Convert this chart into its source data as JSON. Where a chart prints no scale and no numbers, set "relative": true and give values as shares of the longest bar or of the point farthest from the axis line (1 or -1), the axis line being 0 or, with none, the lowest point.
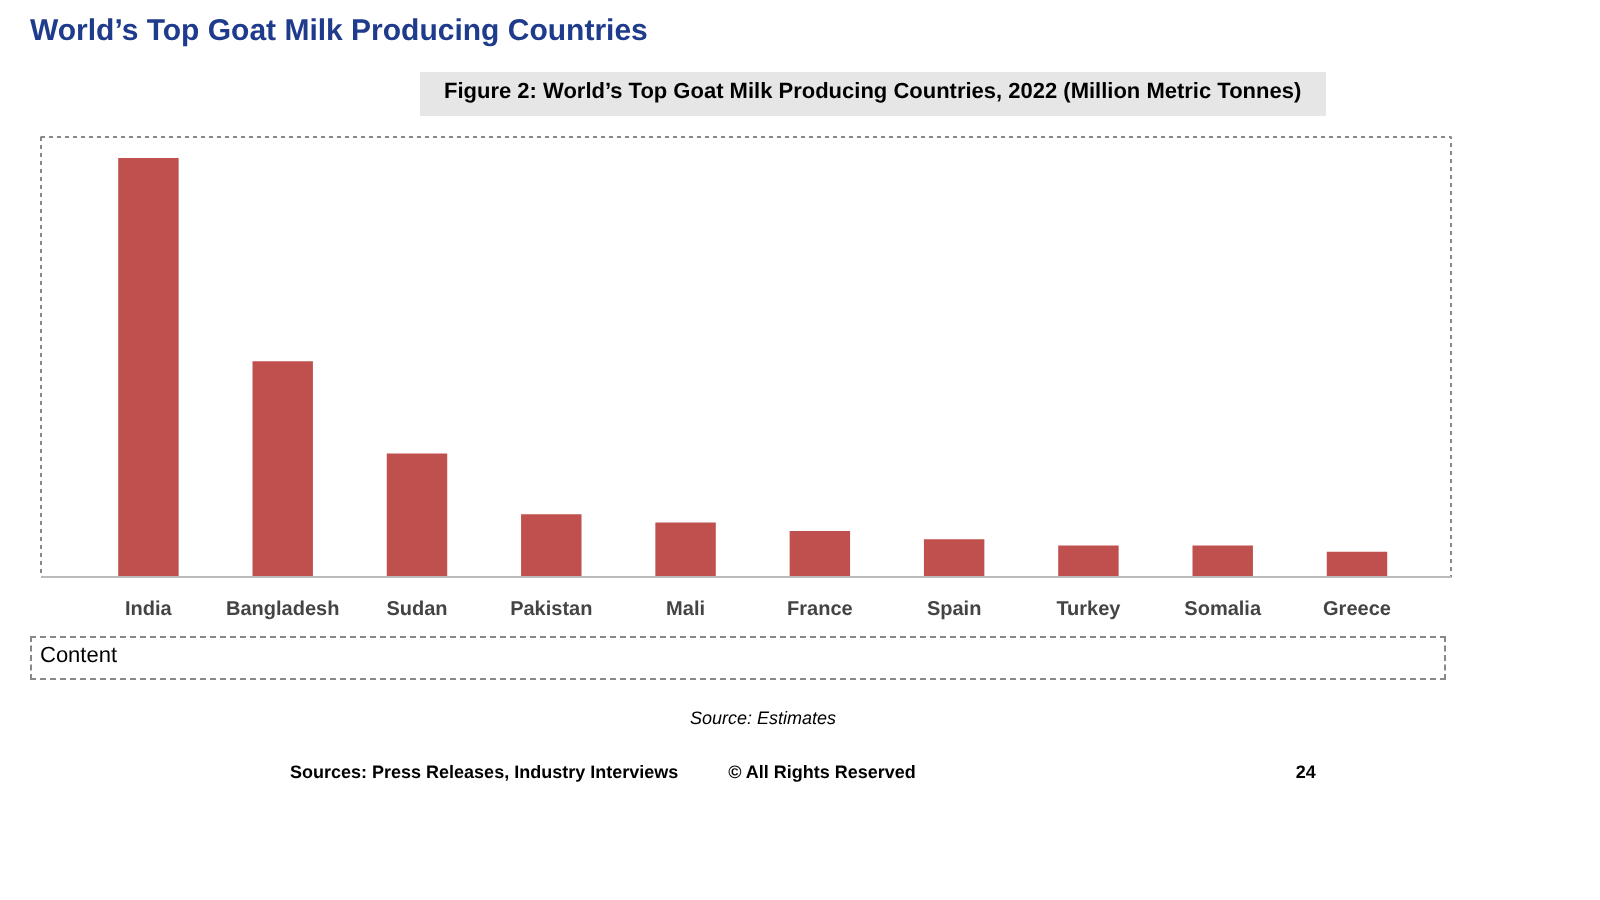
{
  "chart_data": {
    "type": "bar",
    "title": "World’s Top Goat Milk Producing Countries",
    "subtitle": "Figure 2: World’s Top Goat Milk Producing Countries, 2022 (Million Metric Tonnes)",
    "categories": [
      "India",
      "Bangladesh",
      "Sudan",
      "Pakistan",
      "Mali",
      "France",
      "Spain",
      "Turkey",
      "Somalia",
      "Greece"
    ],
    "values": [
      1,
      0.515,
      0.295,
      0.15,
      0.13,
      0.11,
      0.09,
      0.075,
      0.075,
      0.06
    ],
    "color": "#c0504d",
    "relative": true,
    "grid": false,
    "annotations": [
      "Content",
      "Source: Estimates",
      "Sources: Press Releases, Industry Interviews",
      "© All Rights Reserved",
      "24"
    ]
  }
}
